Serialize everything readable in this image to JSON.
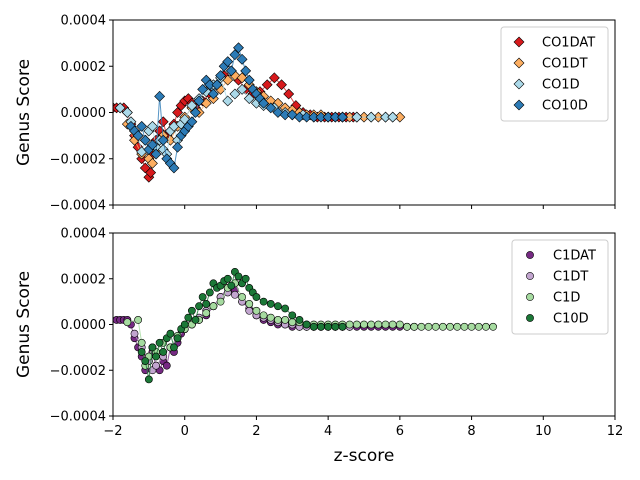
{
  "chart_data": [
    {
      "type": "scatter",
      "panel": "top",
      "title": "",
      "xlabel": "",
      "ylabel": "Genus Score",
      "xlim": [
        -2,
        12
      ],
      "ylim": [
        -0.0004,
        0.0004
      ],
      "xticks": [
        -2,
        0,
        2,
        4,
        6,
        8,
        10,
        12
      ],
      "xtick_labels": [],
      "yticks": [
        -0.0004,
        -0.0002,
        0.0,
        0.0002,
        0.0004
      ],
      "ytick_labels": [
        "−0.0004",
        "−0.0002",
        "0.0000",
        "0.0002",
        "0.0004"
      ],
      "marker": "diamond",
      "legend_position": "top-right",
      "series": [
        {
          "name": "CO1DAT",
          "color": "#d7191c",
          "x": [
            -2.0,
            -1.9,
            -1.8,
            -1.7,
            -1.6,
            -1.5,
            -1.4,
            -1.3,
            -1.2,
            -1.1,
            -1.0,
            -0.95,
            -0.9,
            -0.8,
            -0.7,
            -0.6,
            -0.5,
            -0.4,
            -0.3,
            -0.2,
            -0.1,
            0.0,
            0.1,
            0.2,
            0.3,
            0.5,
            0.7,
            0.9,
            1.1,
            1.3,
            1.5,
            1.7,
            1.9,
            2.1,
            2.3,
            2.5,
            2.7,
            2.9,
            3.1,
            3.3,
            3.5,
            3.7,
            3.9,
            4.1,
            4.3,
            4.5,
            4.7,
            4.8
          ],
          "y": [
            2e-05,
            2e-05,
            2e-05,
            2e-05,
            0.0,
            -5e-05,
            -0.0001,
            -0.00015,
            -0.0002,
            -0.00024,
            -0.00028,
            -0.00026,
            -0.00018,
            -0.00012,
            -8e-05,
            -4e-05,
            -0.0001,
            -8e-05,
            -5e-05,
            0.0,
            3e-05,
            5e-05,
            6e-05,
            4e-05,
            2e-05,
            5e-05,
            8e-05,
            0.00012,
            0.00016,
            0.00018,
            0.00014,
            0.0001,
            8e-05,
            9e-05,
            0.00012,
            0.00015,
            0.00012,
            8e-05,
            3e-05,
            0.0,
            -1e-05,
            -2e-05,
            -2e-05,
            -2e-05,
            -2e-05,
            -2e-05,
            -2e-05,
            -2e-05
          ]
        },
        {
          "name": "CO1DT",
          "color": "#fdae61",
          "x": [
            -1.6,
            -1.4,
            -1.2,
            -1.0,
            -0.9,
            -0.8,
            -0.6,
            -0.4,
            -0.2,
            0.0,
            0.2,
            0.4,
            0.6,
            0.8,
            1.0,
            1.2,
            1.4,
            1.6,
            1.8,
            2.0,
            2.2,
            2.4,
            2.6,
            2.8,
            3.0,
            3.2,
            3.4,
            3.6,
            3.8,
            4.0,
            4.2,
            4.4,
            4.6,
            4.8,
            5.0,
            5.2,
            5.4,
            5.6,
            5.8,
            6.0
          ],
          "y": [
            -5e-05,
            -0.00012,
            -0.00018,
            -0.0002,
            -0.00022,
            -0.00016,
            -0.0001,
            -0.00012,
            -6e-05,
            -2e-05,
            2e-05,
            0.0,
            4e-05,
            6e-05,
            0.0001,
            0.00014,
            0.00016,
            0.00015,
            0.00012,
            9e-05,
            7e-05,
            5e-05,
            4e-05,
            2e-05,
            1e-05,
            0.0,
            -1e-05,
            -1e-05,
            -1e-05,
            -2e-05,
            -2e-05,
            -2e-05,
            -2e-05,
            -2e-05,
            -2e-05,
            -2e-05,
            -2e-05,
            -2e-05,
            -2e-05,
            -2e-05
          ]
        },
        {
          "name": "CO1D",
          "color": "#abd9e9",
          "x": [
            -1.8,
            -1.6,
            -1.5,
            -1.4,
            -1.3,
            -1.2,
            -1.1,
            -1.0,
            -0.9,
            -0.8,
            -0.7,
            -0.6,
            -0.5,
            -0.4,
            -0.3,
            -0.2,
            -0.1,
            0.0,
            0.2,
            0.4,
            0.6,
            0.8,
            1.0,
            1.2,
            1.4,
            1.6,
            1.8,
            2.0,
            2.2,
            2.5,
            2.8,
            3.0,
            3.3,
            3.6,
            4.0,
            4.4,
            4.8,
            5.2,
            5.6,
            5.8
          ],
          "y": [
            2e-05,
            0.0,
            -4e-05,
            -8e-05,
            -0.0001,
            -0.00017,
            -0.00012,
            -8e-05,
            -6e-05,
            -0.00015,
            -0.00012,
            -0.00016,
            -0.00018,
            -8e-05,
            -6e-05,
            -0.00012,
            -5e-05,
            -3e-05,
            3e-05,
            6e-05,
            9e-05,
            0.00012,
            0.00015,
            5e-05,
            8e-05,
            0.0001,
            6e-05,
            4e-05,
            3e-05,
            2e-05,
            0.0,
            -1e-05,
            -1e-05,
            -2e-05,
            -2e-05,
            -2e-05,
            -2e-05,
            -2e-05,
            -2e-05,
            -2e-05
          ]
        },
        {
          "name": "CO10D",
          "color": "#2c7bb6",
          "x": [
            -1.5,
            -1.4,
            -1.3,
            -1.2,
            -1.1,
            -1.0,
            -0.9,
            -0.8,
            -0.7,
            -0.6,
            -0.5,
            -0.4,
            -0.3,
            -0.2,
            -0.1,
            0.0,
            0.1,
            0.2,
            0.3,
            0.4,
            0.5,
            0.6,
            0.7,
            0.8,
            0.9,
            1.0,
            1.1,
            1.2,
            1.3,
            1.4,
            1.5,
            1.6,
            1.7,
            1.8,
            1.9,
            2.0,
            2.1,
            2.2,
            2.4,
            2.6,
            2.8,
            3.0,
            3.2,
            3.4,
            3.6,
            3.8,
            4.0,
            4.2,
            4.4
          ],
          "y": [
            -6e-05,
            -8e-05,
            -0.0001,
            -6e-05,
            -0.00012,
            -0.00016,
            -0.00014,
            -0.00018,
            7e-05,
            -0.00012,
            -0.0002,
            -0.00022,
            -0.00024,
            -0.00015,
            -0.0001,
            -8e-05,
            -6e-05,
            -4e-05,
            0.0,
            5e-05,
            0.0001,
            0.00014,
            0.00012,
            8e-05,
            0.00012,
            0.00016,
            0.0002,
            0.00022,
            0.00018,
            0.00025,
            0.00028,
            0.00023,
            0.00018,
            0.00014,
            0.0001,
            8e-05,
            6e-05,
            4e-05,
            2e-05,
            0.0,
            -1e-05,
            -1e-05,
            -2e-05,
            -2e-05,
            -2e-05,
            -2e-05,
            -2e-05,
            -2e-05,
            -2e-05
          ]
        }
      ]
    },
    {
      "type": "scatter",
      "panel": "bottom",
      "title": "",
      "xlabel": "z-score",
      "ylabel": "Genus Score",
      "xlim": [
        -2,
        12
      ],
      "ylim": [
        -0.0004,
        0.0004
      ],
      "xticks": [
        -2,
        0,
        2,
        4,
        6,
        8,
        10,
        12
      ],
      "xtick_labels": [
        "−2",
        "0",
        "2",
        "4",
        "6",
        "8",
        "10",
        "12"
      ],
      "yticks": [
        -0.0004,
        -0.0002,
        0.0,
        0.0002,
        0.0004
      ],
      "ytick_labels": [
        "−0.0004",
        "−0.0002",
        "0.0000",
        "0.0002",
        "0.0004"
      ],
      "marker": "circle",
      "legend_position": "top-right",
      "series": [
        {
          "name": "C1DAT",
          "color": "#762a83",
          "x": [
            -1.9,
            -1.8,
            -1.7,
            -1.6,
            -1.5,
            -1.4,
            -1.3,
            -1.2,
            -1.1,
            -1.0,
            -0.9,
            -0.8,
            -0.7,
            -0.6,
            -0.5,
            -0.4,
            -0.3,
            -0.2,
            -0.1,
            0.0,
            0.2,
            0.4,
            0.6,
            0.8,
            1.0,
            1.2,
            1.4,
            1.6,
            1.8,
            2.0,
            2.2,
            2.4,
            2.6,
            2.8,
            3.0,
            3.2,
            3.4,
            3.6,
            3.8,
            4.0,
            4.2,
            4.4,
            4.6,
            4.8,
            5.0,
            5.2,
            5.4,
            5.6,
            5.8,
            6.0,
            6.2,
            6.4
          ],
          "y": [
            2e-05,
            2e-05,
            2e-05,
            2e-05,
            0.0,
            -6e-05,
            -0.0001,
            -0.00014,
            -0.0002,
            -0.00016,
            -0.00012,
            -0.00018,
            -0.0002,
            -0.00016,
            -0.00018,
            -0.0001,
            -0.00012,
            -8e-05,
            -4e-05,
            -2e-05,
            0.0,
            2e-05,
            4e-05,
            8e-05,
            0.00012,
            0.00016,
            0.00015,
            0.0001,
            7e-05,
            4e-05,
            2e-05,
            1e-05,
            0.0,
            0.0,
            -1e-05,
            -1e-05,
            -1e-05,
            -1e-05,
            -1e-05,
            -1e-05,
            -1e-05,
            -1e-05,
            -1e-05,
            -1e-05,
            -1e-05,
            -1e-05,
            -1e-05,
            -1e-05,
            -1e-05,
            -1e-05,
            -1e-05,
            -1e-05
          ]
        },
        {
          "name": "C1DT",
          "color": "#c2a5cf",
          "x": [
            -1.4,
            -1.2,
            -1.0,
            -0.9,
            -0.8,
            -0.6,
            -0.4,
            -0.2,
            0.0,
            0.2,
            0.4,
            0.6,
            0.8,
            1.0,
            1.2,
            1.4,
            1.6,
            1.8,
            2.0,
            2.2,
            2.4,
            2.6,
            2.8,
            3.0,
            3.2,
            3.4,
            3.6,
            3.8,
            4.0,
            4.2,
            4.4,
            4.6
          ],
          "y": [
            -4e-05,
            -0.0001,
            -0.00016,
            -0.0002,
            -0.00018,
            -0.00014,
            -0.0001,
            -6e-05,
            -2e-05,
            0.0,
            3e-05,
            6e-05,
            8e-05,
            0.00012,
            0.00014,
            0.00013,
            0.0001,
            6e-05,
            4e-05,
            3e-05,
            2e-05,
            1e-05,
            0.0,
            0.0,
            -1e-05,
            -1e-05,
            -1e-05,
            -1e-05,
            -1e-05,
            -1e-05,
            -1e-05,
            -1e-05
          ]
        },
        {
          "name": "C1D",
          "color": "#a6dba0",
          "x": [
            -1.6,
            -1.3,
            -1.2,
            -1.1,
            -1.0,
            -0.9,
            -0.8,
            -0.6,
            -0.4,
            -0.2,
            0.0,
            0.2,
            0.4,
            0.6,
            0.8,
            1.0,
            1.2,
            1.4,
            1.6,
            1.8,
            2.0,
            2.2,
            2.4,
            2.6,
            2.8,
            3.0,
            3.2,
            3.4,
            3.6,
            3.8,
            4.0,
            4.2,
            4.4,
            4.6,
            4.8,
            5.0,
            5.2,
            5.4,
            5.6,
            5.8,
            6.0,
            6.2,
            6.4,
            6.6,
            6.8,
            7.0,
            7.2,
            7.4,
            7.6,
            7.8,
            8.0,
            8.2,
            8.4,
            8.6
          ],
          "y": [
            1e-05,
            2e-05,
            -8e-05,
            -0.00018,
            -0.00014,
            -0.0001,
            -0.00012,
            -8e-05,
            -0.0001,
            -5e-05,
            -2e-05,
            0.0,
            2e-05,
            5e-05,
            8e-05,
            0.0001,
            0.00016,
            0.00018,
            0.00012,
            9e-05,
            6e-05,
            4e-05,
            3e-05,
            2e-05,
            2e-05,
            1e-05,
            1e-05,
            0.0,
            0.0,
            0.0,
            0.0,
            0.0,
            0.0,
            0.0,
            0.0,
            0.0,
            0.0,
            0.0,
            0.0,
            0.0,
            0.0,
            -1e-05,
            -1e-05,
            -1e-05,
            -1e-05,
            -1e-05,
            -1e-05,
            -1e-05,
            -1e-05,
            -1e-05,
            -1e-05,
            -1e-05,
            -1e-05,
            -1e-05
          ]
        },
        {
          "name": "C10D",
          "color": "#1b7837",
          "x": [
            -1.2,
            -1.1,
            -1.0,
            -0.9,
            -0.8,
            -0.7,
            -0.6,
            -0.5,
            -0.4,
            -0.3,
            -0.2,
            -0.1,
            0.0,
            0.1,
            0.2,
            0.3,
            0.4,
            0.5,
            0.6,
            0.7,
            0.8,
            0.9,
            1.0,
            1.1,
            1.2,
            1.3,
            1.4,
            1.5,
            1.6,
            1.7,
            1.8,
            1.9,
            2.0,
            2.2,
            2.4,
            2.6,
            2.8,
            3.0,
            3.2,
            3.4,
            3.6,
            3.8,
            4.0,
            4.2,
            4.4
          ],
          "y": [
            -0.00012,
            -0.00016,
            -0.00024,
            -0.0001,
            -0.00014,
            -8e-05,
            -0.00012,
            -6e-05,
            -4e-05,
            -0.0001,
            -6e-05,
            -2e-05,
            0.0,
            3e-05,
            6e-05,
            2e-05,
            8e-05,
            0.00012,
            9e-05,
            0.00014,
            0.00018,
            0.00016,
            0.00017,
            0.00019,
            0.0002,
            0.00017,
            0.00023,
            0.00021,
            0.00018,
            0.0002,
            0.00016,
            0.00014,
            0.00012,
            0.0001,
            9e-05,
            8e-05,
            7e-05,
            4e-05,
            2e-05,
            0.0,
            -1e-05,
            -1e-05,
            -1e-05,
            -1e-05,
            -1e-05
          ]
        }
      ]
    }
  ]
}
